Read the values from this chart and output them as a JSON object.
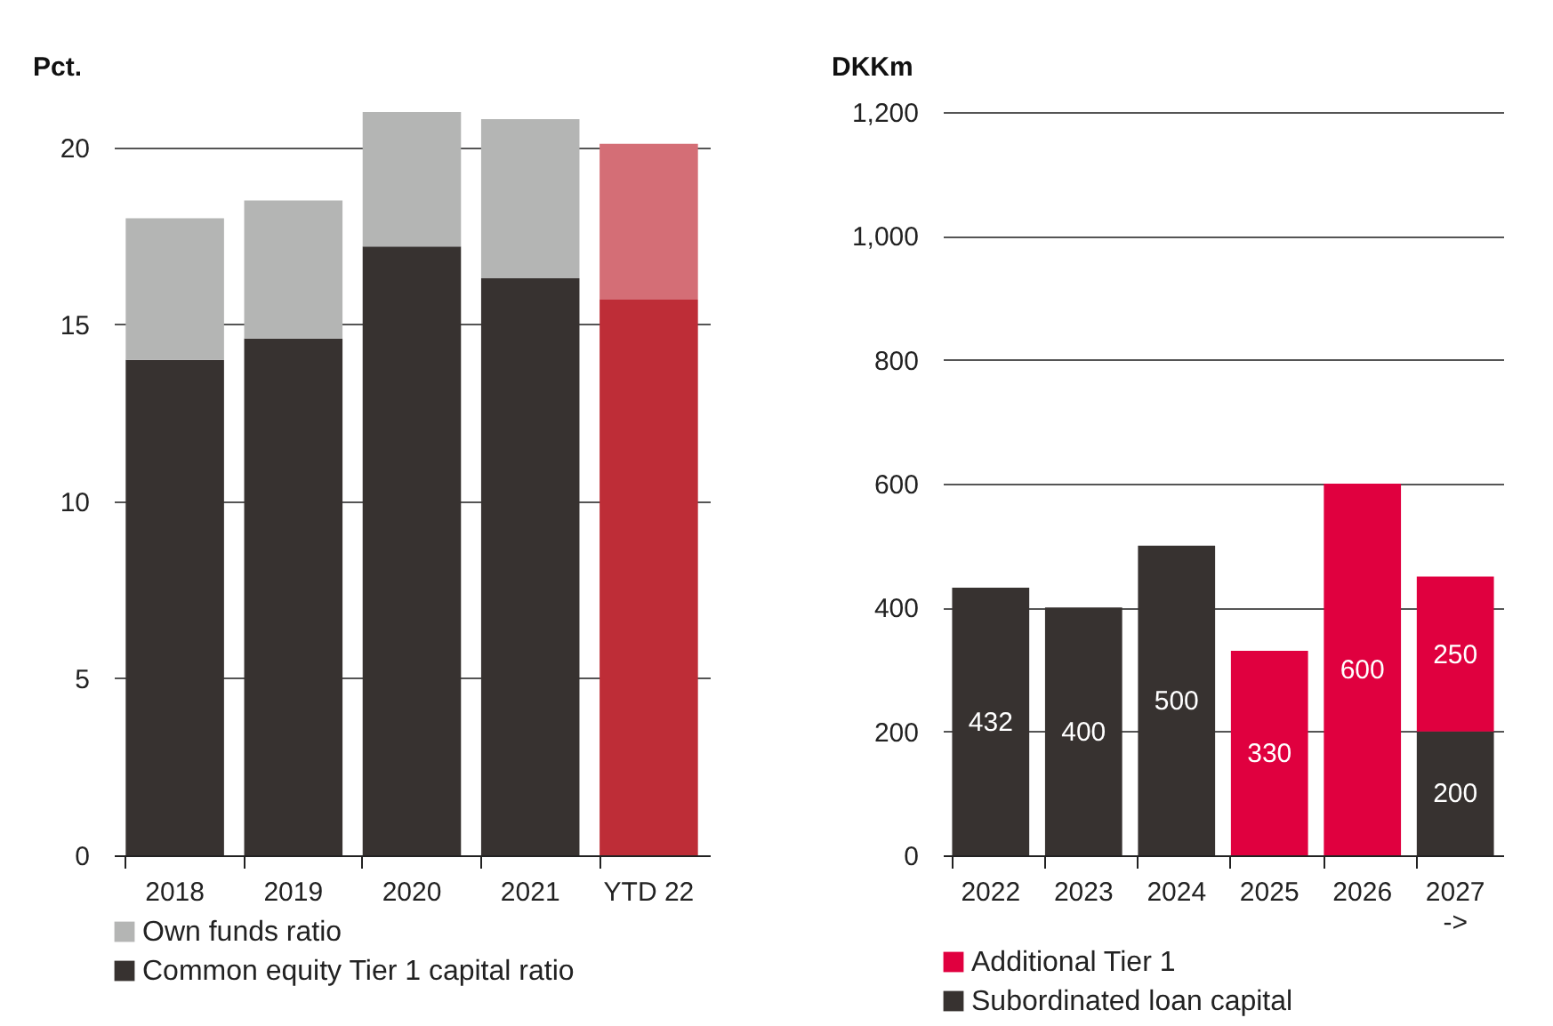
{
  "chart_data": [
    {
      "type": "bar",
      "ylabel": "Pct.",
      "categories": [
        "2018",
        "2019",
        "2020",
        "2021",
        "YTD 22"
      ],
      "stacked": true,
      "ylim": [
        0,
        21
      ],
      "yticks": [
        0,
        5,
        10,
        15,
        20
      ],
      "grid": "y",
      "legend": "bottom",
      "series": [
        {
          "name": "Common equity Tier 1 capital ratio",
          "color": "#373230",
          "colors": [
            "#373230",
            "#373230",
            "#373230",
            "#373230",
            "#be2d37"
          ],
          "values": [
            14.0,
            14.6,
            17.2,
            16.3,
            15.7
          ]
        },
        {
          "name": "Own funds ratio",
          "color": "#b4b5b4",
          "colors": [
            "#b4b5b4",
            "#b4b5b4",
            "#b4b5b4",
            "#b4b5b4",
            "#d46e76"
          ],
          "values": [
            4.0,
            3.9,
            3.8,
            4.5,
            4.4
          ]
        }
      ]
    },
    {
      "type": "bar",
      "ylabel": "DKKm",
      "categories": [
        "2022",
        "2023",
        "2024",
        "2025",
        "2026",
        "2027\n->"
      ],
      "stacked": true,
      "ylim": [
        0,
        1200
      ],
      "yticks": [
        0,
        200,
        400,
        600,
        800,
        {
          "value": 1000,
          "label": "1,000"
        },
        {
          "value": 1200,
          "label": "1,200"
        }
      ],
      "grid": "y",
      "legend": "bottom",
      "data_labels": true,
      "series": [
        {
          "name": "Subordinated loan capital",
          "color": "#373230",
          "values": [
            432,
            400,
            500,
            null,
            null,
            200
          ]
        },
        {
          "name": "Additional Tier 1",
          "color": "#e0003f",
          "values": [
            null,
            null,
            null,
            330,
            600,
            250
          ]
        }
      ]
    }
  ]
}
